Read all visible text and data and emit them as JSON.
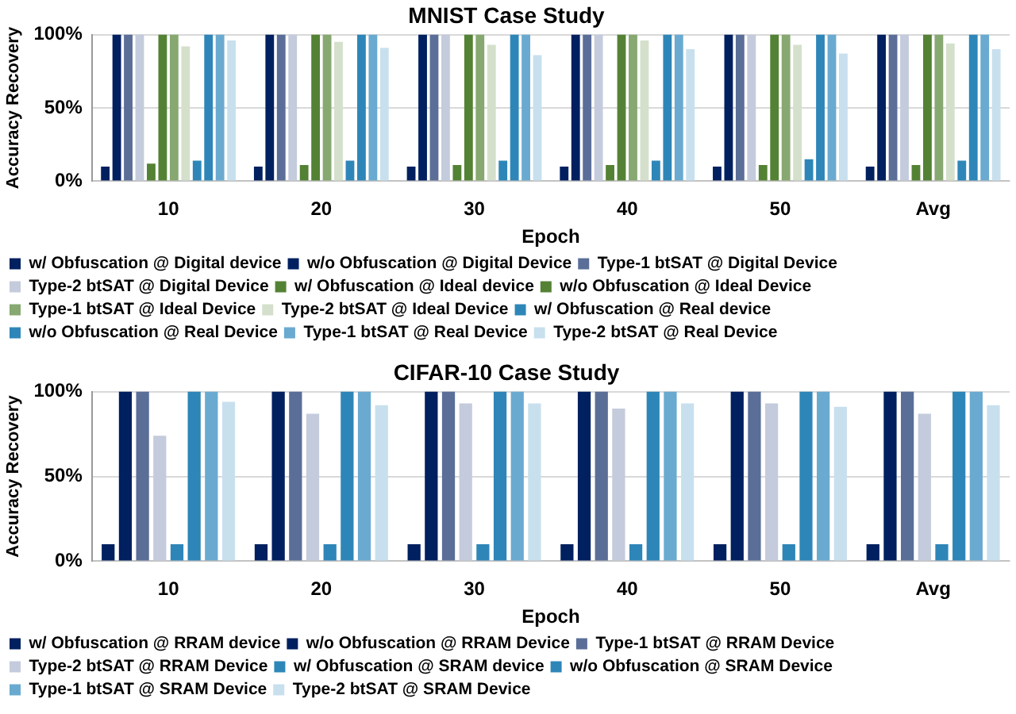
{
  "chart_data": [
    {
      "type": "bar",
      "title": "MNIST Case Study",
      "xlabel": "Epoch",
      "ylabel": "Accuracy Recovery",
      "categories": [
        "10",
        "20",
        "30",
        "40",
        "50",
        "Avg"
      ],
      "ylim": [
        0,
        100
      ],
      "yticks": [
        {
          "value": 0,
          "label": "0%"
        },
        {
          "value": 50,
          "label": "50%"
        },
        {
          "value": 100,
          "label": "100%"
        }
      ],
      "grid": "y",
      "legend": "bottom",
      "series": [
        {
          "name": "w/ Obfuscation @ Digital device",
          "color": "#002060",
          "values": [
            10,
            10,
            10,
            10,
            10,
            10
          ]
        },
        {
          "name": "w/o Obfuscation @ Digital Device",
          "color": "#002060",
          "values": [
            100,
            100,
            100,
            100,
            100,
            100
          ]
        },
        {
          "name": "Type-1 btSAT @ Digital Device",
          "color": "#5a6e98",
          "values": [
            100,
            100,
            100,
            100,
            100,
            100
          ]
        },
        {
          "name": "Type-2 btSAT @ Digital Device",
          "color": "#c4cbdc",
          "values": [
            100,
            100,
            100,
            100,
            100,
            100
          ]
        },
        {
          "name": "w/ Obfuscation @ Ideal device",
          "color": "#548235",
          "values": [
            12,
            11,
            11,
            11,
            11,
            11
          ]
        },
        {
          "name": "w/o Obfuscation @ Ideal Device",
          "color": "#548235",
          "values": [
            100,
            100,
            100,
            100,
            100,
            100
          ]
        },
        {
          "name": "Type-1 btSAT @ Ideal Device",
          "color": "#87a870",
          "values": [
            100,
            100,
            100,
            100,
            100,
            100
          ]
        },
        {
          "name": "Type-2 btSAT @ Ideal Device",
          "color": "#d4e0cb",
          "values": [
            92,
            95,
            93,
            96,
            93,
            94
          ]
        },
        {
          "name": "w/ Obfuscation @ Real device",
          "color": "#2e86b8",
          "values": [
            14,
            14,
            14,
            14,
            15,
            14
          ]
        },
        {
          "name": "w/o Obfuscation @ Real Device",
          "color": "#2e86b8",
          "values": [
            100,
            100,
            100,
            100,
            100,
            100
          ]
        },
        {
          "name": "Type-1 btSAT @ Real Device",
          "color": "#6aaad0",
          "values": [
            100,
            100,
            100,
            100,
            100,
            100
          ]
        },
        {
          "name": "Type-2 btSAT @ Real Device",
          "color": "#c8e0ee",
          "values": [
            96,
            91,
            86,
            90,
            87,
            90
          ]
        }
      ]
    },
    {
      "type": "bar",
      "title": "CIFAR-10 Case Study",
      "xlabel": "Epoch",
      "ylabel": "Accuracy Recovery",
      "categories": [
        "10",
        "20",
        "30",
        "40",
        "50",
        "Avg"
      ],
      "ylim": [
        0,
        100
      ],
      "yticks": [
        {
          "value": 0,
          "label": "0%"
        },
        {
          "value": 50,
          "label": "50%"
        },
        {
          "value": 100,
          "label": "100%"
        }
      ],
      "grid": "y",
      "legend": "bottom",
      "series": [
        {
          "name": "w/ Obfuscation @ RRAM device",
          "color": "#002060",
          "values": [
            10,
            10,
            10,
            10,
            10,
            10
          ]
        },
        {
          "name": "w/o Obfuscation @ RRAM Device",
          "color": "#002060",
          "values": [
            100,
            100,
            100,
            100,
            100,
            100
          ]
        },
        {
          "name": "Type-1 btSAT @ RRAM Device",
          "color": "#5a6e98",
          "values": [
            100,
            100,
            100,
            100,
            100,
            100
          ]
        },
        {
          "name": "Type-2 btSAT @ RRAM Device",
          "color": "#c4cbdc",
          "values": [
            74,
            87,
            93,
            90,
            93,
            87
          ]
        },
        {
          "name": "w/ Obfuscation @ SRAM device",
          "color": "#2e86b8",
          "values": [
            10,
            10,
            10,
            10,
            10,
            10
          ]
        },
        {
          "name": "w/o Obfuscation @ SRAM Device",
          "color": "#2e86b8",
          "values": [
            100,
            100,
            100,
            100,
            100,
            100
          ]
        },
        {
          "name": "Type-1 btSAT @ SRAM Device",
          "color": "#6aaad0",
          "values": [
            100,
            100,
            100,
            100,
            100,
            100
          ]
        },
        {
          "name": "Type-2 btSAT @ SRAM Device",
          "color": "#c8e0ee",
          "values": [
            94,
            92,
            93,
            93,
            91,
            92
          ]
        }
      ]
    }
  ]
}
